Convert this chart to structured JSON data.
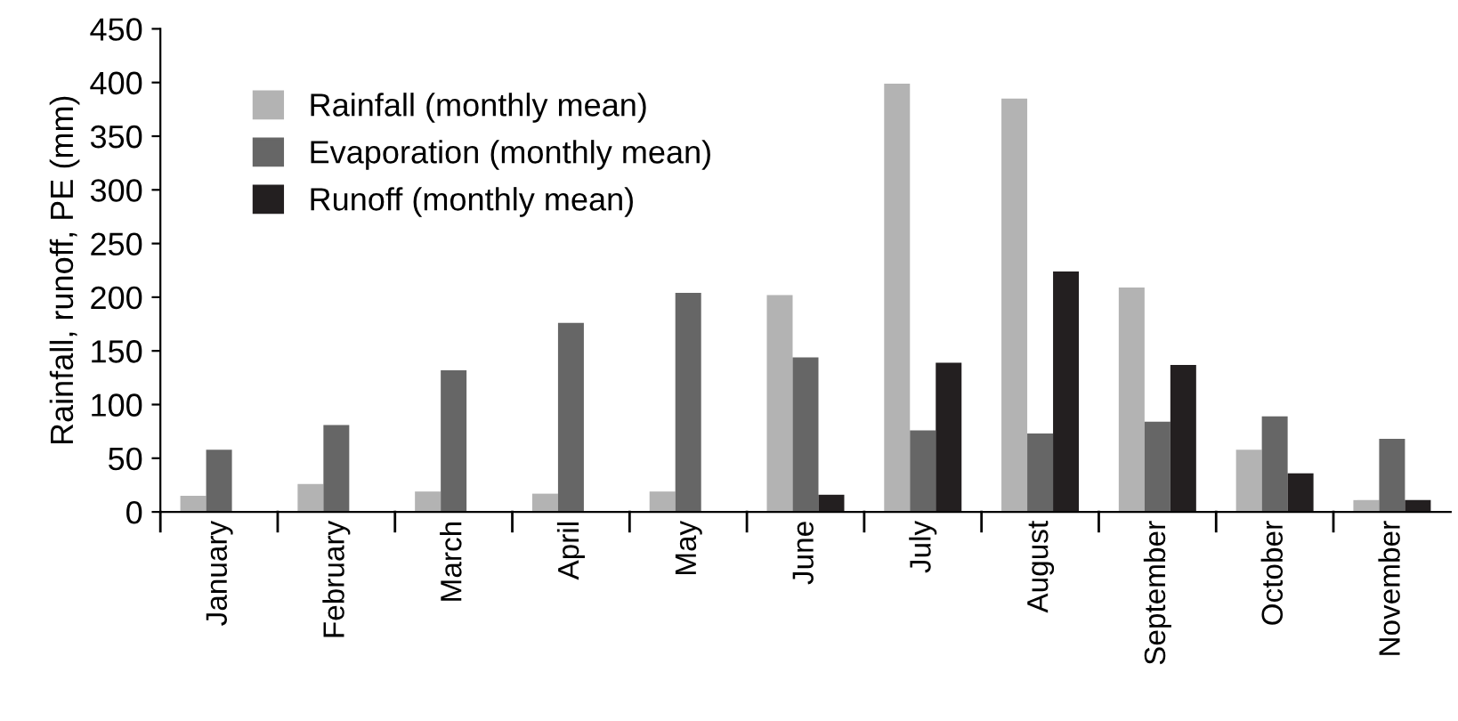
{
  "chart_data": {
    "type": "bar",
    "ylabel": "Rainfall, runoff, PE (mm)",
    "categories": [
      "January",
      "February",
      "March",
      "April",
      "May",
      "June",
      "July",
      "August",
      "September",
      "October",
      "November"
    ],
    "series": [
      {
        "name": "Rainfall (monthly mean)",
        "color": "#b3b3b3",
        "values": [
          15,
          26,
          19,
          17,
          19,
          202,
          399,
          385,
          209,
          58,
          11
        ]
      },
      {
        "name": "Evaporation (monthly mean)",
        "color": "#666666",
        "values": [
          58,
          81,
          132,
          176,
          204,
          144,
          76,
          73,
          84,
          89,
          68
        ]
      },
      {
        "name": "Runoff (monthly mean)",
        "color": "#231f20",
        "values": [
          null,
          null,
          null,
          null,
          null,
          16,
          139,
          224,
          137,
          36,
          11
        ]
      }
    ],
    "ylim": [
      0,
      450
    ],
    "yticks": [
      0,
      50,
      100,
      150,
      200,
      250,
      300,
      350,
      400,
      450
    ],
    "grid": false,
    "legend": "top left"
  }
}
